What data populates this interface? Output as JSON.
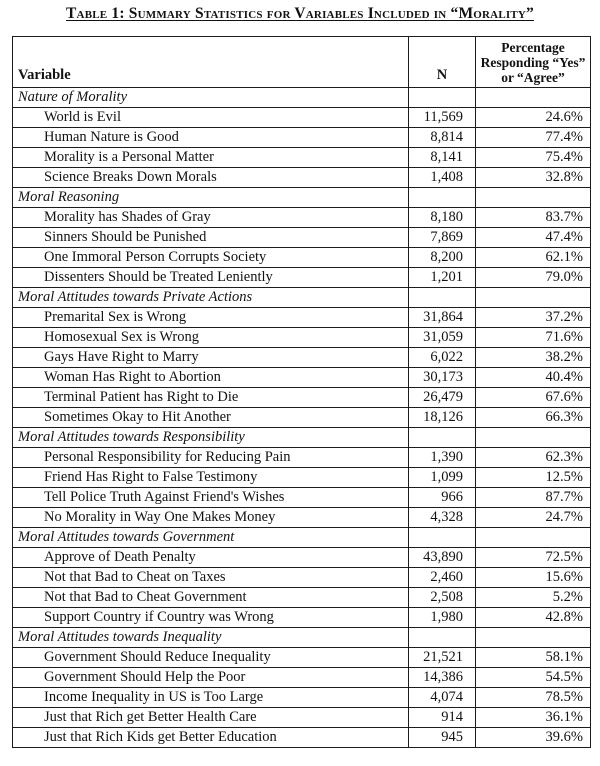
{
  "title": "Table 1: Summary Statistics for Variables Included in “Morality”",
  "table": {
    "columns": {
      "variable": "Variable",
      "n": "N",
      "percentage": "Percentage Responding “Yes” or “Agree”"
    },
    "sections": [
      {
        "label": "Nature of Morality",
        "rows": [
          {
            "variable": "World is Evil",
            "n": "11,569",
            "percentage": "24.6%"
          },
          {
            "variable": "Human Nature is Good",
            "n": "8,814",
            "percentage": "77.4%"
          },
          {
            "variable": "Morality is a Personal Matter",
            "n": "8,141",
            "percentage": "75.4%"
          },
          {
            "variable": "Science Breaks Down Morals",
            "n": "1,408",
            "percentage": "32.8%"
          }
        ]
      },
      {
        "label": "Moral Reasoning",
        "rows": [
          {
            "variable": "Morality has Shades of Gray",
            "n": "8,180",
            "percentage": "83.7%"
          },
          {
            "variable": "Sinners Should be Punished",
            "n": "7,869",
            "percentage": "47.4%"
          },
          {
            "variable": "One Immoral Person Corrupts Society",
            "n": "8,200",
            "percentage": "62.1%"
          },
          {
            "variable": "Dissenters Should be Treated Leniently",
            "n": "1,201",
            "percentage": "79.0%"
          }
        ]
      },
      {
        "label": "Moral Attitudes towards Private Actions",
        "rows": [
          {
            "variable": "Premarital Sex is Wrong",
            "n": "31,864",
            "percentage": "37.2%"
          },
          {
            "variable": "Homosexual Sex is Wrong",
            "n": "31,059",
            "percentage": "71.6%"
          },
          {
            "variable": "Gays Have Right to Marry",
            "n": "6,022",
            "percentage": "38.2%"
          },
          {
            "variable": "Woman Has Right to Abortion",
            "n": "30,173",
            "percentage": "40.4%"
          },
          {
            "variable": "Terminal Patient has Right to Die",
            "n": "26,479",
            "percentage": "67.6%"
          },
          {
            "variable": "Sometimes Okay to Hit Another",
            "n": "18,126",
            "percentage": "66.3%"
          }
        ]
      },
      {
        "label": "Moral Attitudes towards Responsibility",
        "rows": [
          {
            "variable": "Personal Responsibility for Reducing Pain",
            "n": "1,390",
            "percentage": "62.3%"
          },
          {
            "variable": "Friend Has Right to False Testimony",
            "n": "1,099",
            "percentage": "12.5%"
          },
          {
            "variable": "Tell Police Truth Against Friend's Wishes",
            "n": "966",
            "percentage": "87.7%"
          },
          {
            "variable": "No Morality in Way One Makes Money",
            "n": "4,328",
            "percentage": "24.7%"
          }
        ]
      },
      {
        "label": "Moral Attitudes towards Government",
        "rows": [
          {
            "variable": "Approve of Death Penalty",
            "n": "43,890",
            "percentage": "72.5%"
          },
          {
            "variable": "Not that Bad to Cheat on Taxes",
            "n": "2,460",
            "percentage": "15.6%"
          },
          {
            "variable": "Not that Bad to Cheat Government",
            "n": "2,508",
            "percentage": "5.2%"
          },
          {
            "variable": "Support Country if Country was Wrong",
            "n": "1,980",
            "percentage": "42.8%"
          }
        ]
      },
      {
        "label": "Moral Attitudes towards Inequality",
        "rows": [
          {
            "variable": "Government Should Reduce Inequality",
            "n": "21,521",
            "percentage": "58.1%"
          },
          {
            "variable": "Government Should Help the Poor",
            "n": "14,386",
            "percentage": "54.5%"
          },
          {
            "variable": "Income Inequality in US is Too Large",
            "n": "4,074",
            "percentage": "78.5%"
          },
          {
            "variable": "Just that Rich get Better Health Care",
            "n": "914",
            "percentage": "36.1%"
          },
          {
            "variable": "Just that Rich Kids get Better Education",
            "n": "945",
            "percentage": "39.6%"
          }
        ]
      }
    ]
  }
}
